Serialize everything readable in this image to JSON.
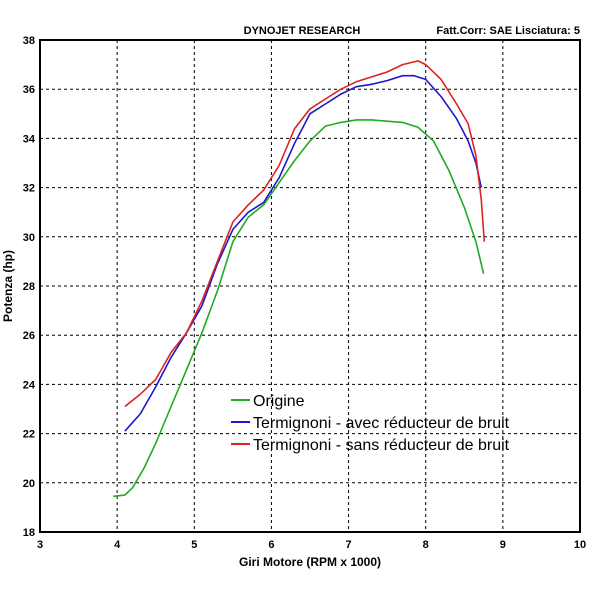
{
  "header": {
    "title": "DYNOJET RESEARCH",
    "correction": "Fatt.Corr: SAE  Lisciatura: 5"
  },
  "chart_data": {
    "type": "line",
    "title": "DYNOJET RESEARCH",
    "xlabel": "Giri Motore (RPM x 1000)",
    "ylabel": "Potenza (hp)",
    "xlim": [
      3,
      10
    ],
    "ylim": [
      18,
      38
    ],
    "xticks": [
      3,
      4,
      5,
      6,
      7,
      8,
      9,
      10
    ],
    "yticks": [
      18,
      20,
      22,
      24,
      26,
      28,
      30,
      32,
      34,
      36,
      38
    ],
    "grid": true,
    "legend_position": "center-left",
    "series": [
      {
        "name": "Origine",
        "color": "#22aa22",
        "x": [
          3.95,
          4.1,
          4.2,
          4.35,
          4.5,
          4.7,
          4.9,
          5.1,
          5.3,
          5.5,
          5.7,
          5.9,
          6.1,
          6.3,
          6.5,
          6.7,
          6.9,
          7.1,
          7.3,
          7.5,
          7.7,
          7.9,
          8.1,
          8.3,
          8.5,
          8.65,
          8.75
        ],
        "y": [
          19.45,
          19.5,
          19.8,
          20.6,
          21.6,
          23.1,
          24.6,
          26.1,
          27.8,
          29.8,
          30.8,
          31.3,
          32.2,
          33.1,
          33.9,
          34.5,
          34.65,
          34.75,
          34.75,
          34.7,
          34.65,
          34.45,
          33.9,
          32.7,
          31.2,
          29.8,
          28.5
        ]
      },
      {
        "name": "Termignoni - avec réducteur de bruit",
        "color": "#1a1acc",
        "x": [
          4.1,
          4.3,
          4.5,
          4.7,
          4.9,
          5.1,
          5.3,
          5.5,
          5.7,
          5.9,
          6.1,
          6.3,
          6.5,
          6.7,
          6.9,
          7.1,
          7.3,
          7.5,
          7.7,
          7.85,
          8.0,
          8.2,
          8.4,
          8.55,
          8.65,
          8.72
        ],
        "y": [
          22.1,
          22.8,
          23.9,
          25.1,
          26.1,
          27.2,
          28.9,
          30.3,
          31.0,
          31.4,
          32.4,
          33.8,
          35.0,
          35.4,
          35.8,
          36.1,
          36.2,
          36.35,
          36.55,
          36.55,
          36.4,
          35.7,
          34.8,
          33.9,
          33.0,
          32.0
        ]
      },
      {
        "name": "Termignoni - sans réducteur de bruit",
        "color": "#dd2222",
        "x": [
          4.1,
          4.3,
          4.5,
          4.7,
          4.9,
          5.1,
          5.3,
          5.5,
          5.7,
          5.9,
          6.1,
          6.3,
          6.5,
          6.7,
          6.9,
          7.1,
          7.3,
          7.5,
          7.7,
          7.9,
          8.0,
          8.2,
          8.4,
          8.55,
          8.65,
          8.72,
          8.76
        ],
        "y": [
          23.1,
          23.6,
          24.2,
          25.3,
          26.1,
          27.4,
          29.0,
          30.6,
          31.3,
          31.9,
          32.9,
          34.4,
          35.2,
          35.6,
          36.0,
          36.3,
          36.5,
          36.7,
          37.0,
          37.15,
          37.0,
          36.4,
          35.4,
          34.6,
          33.3,
          31.5,
          29.8
        ]
      }
    ]
  }
}
